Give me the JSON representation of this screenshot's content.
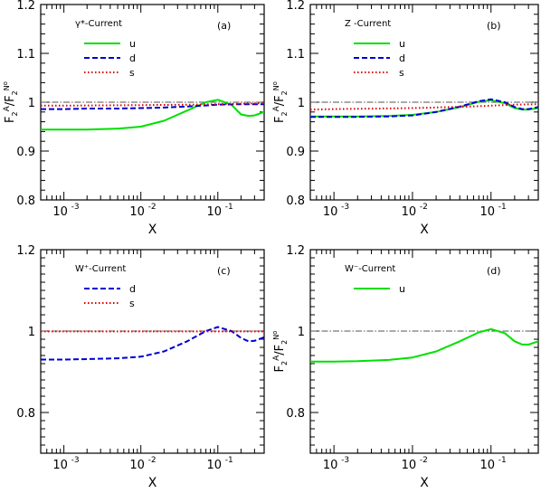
{
  "chart_data": [
    {
      "panel": "(a)",
      "title": "γ*-Current",
      "type": "line",
      "xscale": "log",
      "xlim": [
        0.0005,
        0.4
      ],
      "ylim": [
        0.8,
        1.2
      ],
      "yticks": [
        0.8,
        0.9,
        1.0,
        1.1,
        1.2
      ],
      "ytick_labels": [
        "0.8",
        "0.9",
        "1",
        "1.1",
        "1.2"
      ],
      "xtick_exponents": [
        "-3",
        "-2",
        "-1"
      ],
      "xlabel": "X",
      "ylabel": "F2A/F2Nₒ",
      "legend": "top-left",
      "reference_line": 1.0,
      "series": [
        {
          "name": "u",
          "color": "#00e000",
          "style": "solid",
          "x": [
            0.0005,
            0.001,
            0.002,
            0.005,
            0.01,
            0.02,
            0.04,
            0.07,
            0.1,
            0.15,
            0.2,
            0.25,
            0.3,
            0.4
          ],
          "y": [
            0.944,
            0.944,
            0.944,
            0.946,
            0.95,
            0.962,
            0.983,
            1.0,
            1.005,
            0.995,
            0.975,
            0.972,
            0.973,
            0.98
          ]
        },
        {
          "name": "d",
          "color": "#0000d0",
          "style": "dashed",
          "x": [
            0.0005,
            0.001,
            0.002,
            0.005,
            0.01,
            0.02,
            0.05,
            0.1,
            0.2,
            0.4
          ],
          "y": [
            0.986,
            0.986,
            0.987,
            0.987,
            0.988,
            0.989,
            0.992,
            0.995,
            0.996,
            0.996
          ]
        },
        {
          "name": "s",
          "color": "#e00000",
          "style": "dotted",
          "x": [
            0.0005,
            0.001,
            0.01,
            0.05,
            0.1,
            0.2,
            0.4
          ],
          "y": [
            0.993,
            0.993,
            0.994,
            0.995,
            0.996,
            0.997,
            0.998
          ]
        }
      ]
    },
    {
      "panel": "(b)",
      "title": "Z -Current",
      "type": "line",
      "xscale": "log",
      "xlim": [
        0.0005,
        0.4
      ],
      "ylim": [
        0.8,
        1.2
      ],
      "yticks": [
        0.8,
        0.9,
        1.0,
        1.1,
        1.2
      ],
      "ytick_labels": [
        "0.8",
        "0.9",
        "1",
        "1.1",
        "1.2"
      ],
      "xtick_exponents": [
        "-3",
        "-2",
        "-1"
      ],
      "xlabel": "X",
      "ylabel": "F2A/F2Nₒ",
      "legend": "top-left",
      "reference_line": 1.0,
      "series": [
        {
          "name": "u",
          "color": "#00e000",
          "style": "solid",
          "x": [
            0.0005,
            0.001,
            0.002,
            0.005,
            0.01,
            0.02,
            0.04,
            0.07,
            0.1,
            0.15,
            0.2,
            0.25,
            0.3,
            0.4
          ],
          "y": [
            0.971,
            0.971,
            0.971,
            0.972,
            0.974,
            0.98,
            0.99,
            1.001,
            1.004,
            0.998,
            0.988,
            0.985,
            0.985,
            0.988
          ]
        },
        {
          "name": "d",
          "color": "#0000d0",
          "style": "dashed",
          "x": [
            0.0005,
            0.001,
            0.002,
            0.005,
            0.01,
            0.02,
            0.04,
            0.07,
            0.1,
            0.15,
            0.2,
            0.25,
            0.3,
            0.4
          ],
          "y": [
            0.97,
            0.97,
            0.97,
            0.971,
            0.973,
            0.98,
            0.991,
            1.002,
            1.006,
            1.0,
            0.99,
            0.986,
            0.986,
            0.99
          ]
        },
        {
          "name": "s",
          "color": "#e00000",
          "style": "dotted",
          "x": [
            0.0005,
            0.001,
            0.01,
            0.05,
            0.1,
            0.2,
            0.4
          ],
          "y": [
            0.985,
            0.986,
            0.988,
            0.991,
            0.993,
            0.995,
            0.996
          ]
        }
      ]
    },
    {
      "panel": "(c)",
      "title": "W⁺-Current",
      "type": "line",
      "xscale": "log",
      "xlim": [
        0.0005,
        0.4
      ],
      "ylim": [
        0.7,
        1.2
      ],
      "yticks": [
        0.8,
        1.0,
        1.2
      ],
      "ytick_labels": [
        "0.8",
        "1",
        "1.2"
      ],
      "xtick_exponents": [
        "-3",
        "-2",
        "-1"
      ],
      "xlabel": "X",
      "ylabel": "",
      "legend": "top-left",
      "reference_line": 1.0,
      "series": [
        {
          "name": "d",
          "color": "#0000d0",
          "style": "dashed",
          "x": [
            0.0005,
            0.001,
            0.002,
            0.005,
            0.01,
            0.02,
            0.04,
            0.07,
            0.1,
            0.15,
            0.2,
            0.25,
            0.3,
            0.4
          ],
          "y": [
            0.93,
            0.93,
            0.931,
            0.933,
            0.937,
            0.95,
            0.975,
            1.0,
            1.01,
            1.0,
            0.983,
            0.975,
            0.976,
            0.985
          ]
        },
        {
          "name": "s",
          "color": "#e00000",
          "style": "dotted",
          "x": [
            0.0005,
            0.01,
            0.1,
            0.4
          ],
          "y": [
            0.999,
            0.999,
            0.999,
            0.999
          ]
        }
      ]
    },
    {
      "panel": "(d)",
      "title": "W⁻-Current",
      "type": "line",
      "xscale": "log",
      "xlim": [
        0.0005,
        0.4
      ],
      "ylim": [
        0.7,
        1.2
      ],
      "yticks": [
        0.8,
        1.0,
        1.2
      ],
      "ytick_labels": [
        "0.8",
        "1",
        "1.2"
      ],
      "xtick_exponents": [
        "-3",
        "-2",
        "-1"
      ],
      "xlabel": "X",
      "ylabel": "F2A/F2Nₒ",
      "legend": "top-left",
      "reference_line": 1.0,
      "series": [
        {
          "name": "u",
          "color": "#00e000",
          "style": "solid",
          "x": [
            0.0005,
            0.001,
            0.002,
            0.005,
            0.01,
            0.02,
            0.04,
            0.07,
            0.1,
            0.15,
            0.2,
            0.25,
            0.3,
            0.4
          ],
          "y": [
            0.925,
            0.925,
            0.926,
            0.929,
            0.935,
            0.95,
            0.975,
            0.997,
            1.005,
            0.995,
            0.975,
            0.967,
            0.967,
            0.975
          ]
        }
      ]
    }
  ]
}
